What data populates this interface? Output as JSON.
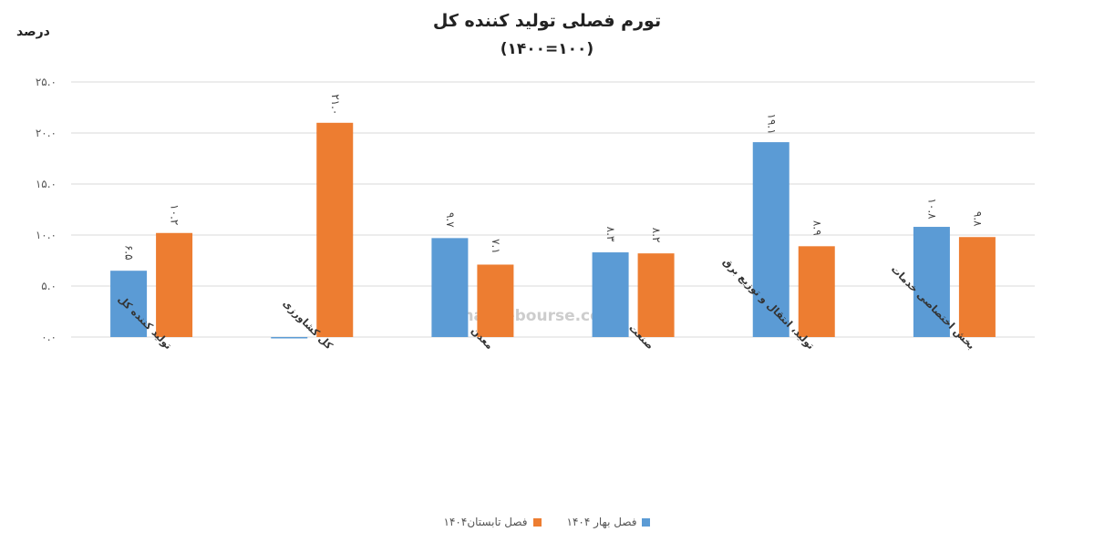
{
  "chart_data": {
    "type": "bar",
    "title": "تورم فصلی تولید کننده کل",
    "subtitle": "(۱۴۰۰=۱۰۰)",
    "ylabel": "درصد",
    "ylim": [
      0,
      25
    ],
    "yticks": [
      0,
      5,
      10,
      15,
      20,
      25
    ],
    "ytick_labels": [
      "۰.۰",
      "۵.۰",
      "۱۰.۰",
      "۱۵.۰",
      "۲۰.۰",
      "۲۵.۰"
    ],
    "grid": true,
    "legend_position": "bottom",
    "categories": [
      "تولید کننده کل",
      "کل کشاورزی",
      "معدن",
      "صنعت",
      "تولید، انتقال و توزیع برق",
      "بخش اختصاصی خدمات"
    ],
    "series": [
      {
        "name": "فصل بهار ۱۴۰۴",
        "color": "#5b9bd5",
        "values": [
          6.5,
          -0.1,
          9.7,
          8.3,
          19.1,
          10.8
        ],
        "labels": [
          "۶.۵",
          "",
          "۹.۷",
          "۸.۳",
          "۱۹.۱",
          "۱۰.۸"
        ]
      },
      {
        "name": "فصل تابستان۱۴۰۴",
        "color": "#ed7d31",
        "values": [
          10.2,
          21.0,
          7.1,
          8.2,
          8.9,
          9.8
        ],
        "labels": [
          "۱۰.۲",
          "۲۱.۰",
          "۷.۱",
          "۸.۲",
          "۸.۹",
          "۹.۸"
        ]
      }
    ],
    "watermark": "nabzebourse.com"
  }
}
